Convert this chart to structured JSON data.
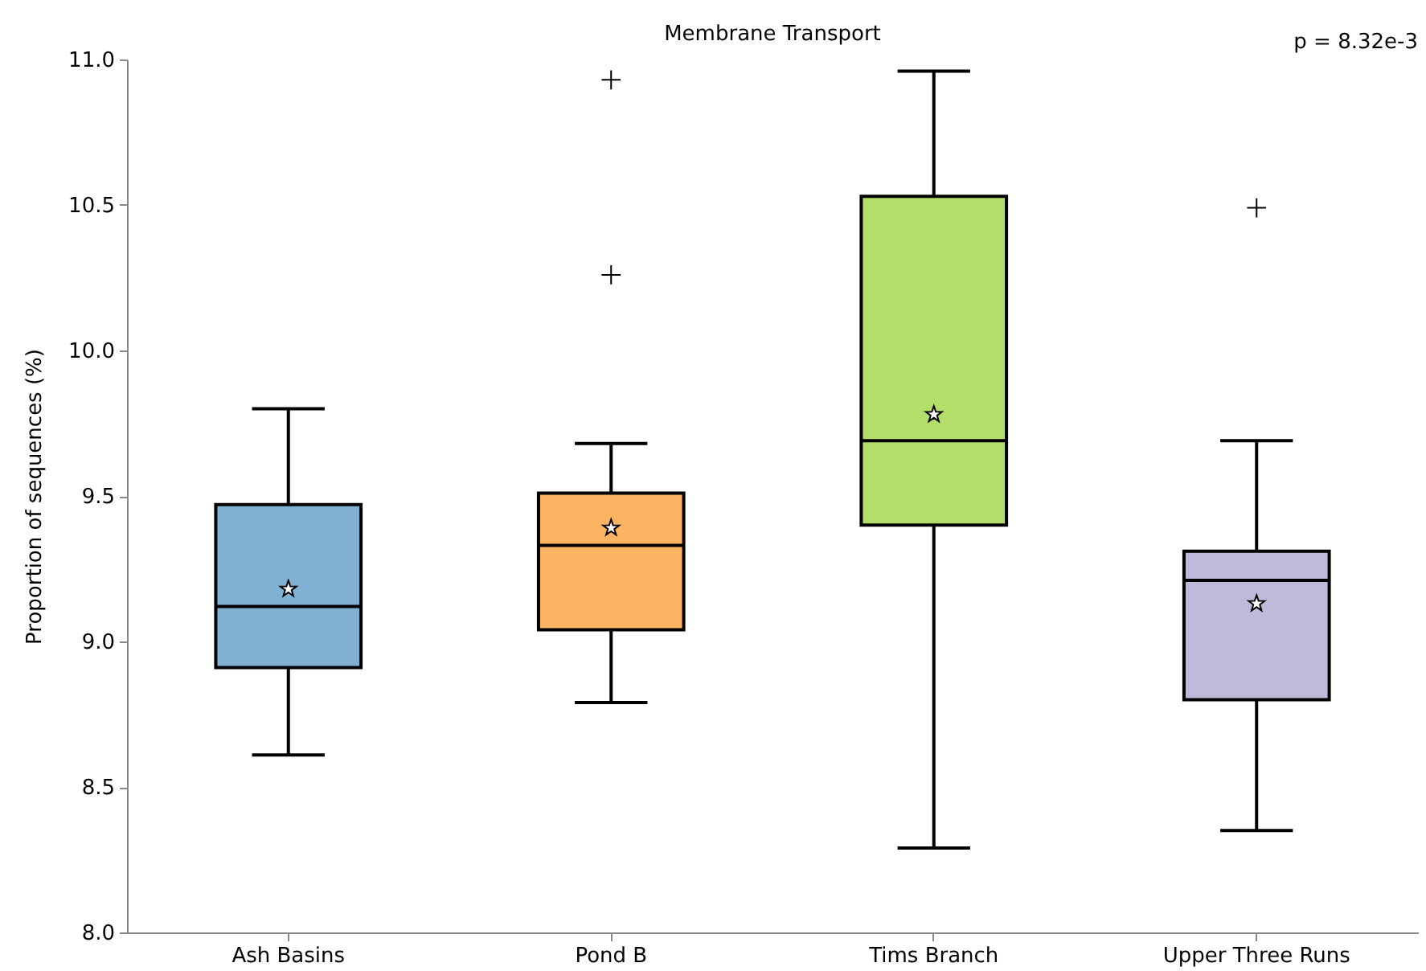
{
  "chart_data": {
    "type": "box",
    "title": "Membrane Transport",
    "ylabel": "Proportion of sequences (%)",
    "annotations": [
      "p = 8.32e-3"
    ],
    "categories": [
      "Ash Basins",
      "Pond B",
      "Tims Branch",
      "Upper Three Runs"
    ],
    "colors": [
      "#80b1d3",
      "#fdb462",
      "#b3de69",
      "#bebada"
    ],
    "boxes": [
      {
        "low": 8.61,
        "q1": 8.91,
        "median": 9.12,
        "q3": 9.47,
        "high": 9.8,
        "mean": 9.18
      },
      {
        "low": 8.79,
        "q1": 9.04,
        "median": 9.33,
        "q3": 9.51,
        "high": 9.68,
        "mean": 9.39,
        "outliers": [
          10.26,
          10.93
        ]
      },
      {
        "low": 8.29,
        "q1": 9.4,
        "median": 9.69,
        "q3": 10.53,
        "high": 10.96,
        "mean": 9.78
      },
      {
        "low": 8.35,
        "q1": 8.8,
        "median": 9.21,
        "q3": 9.31,
        "high": 9.69,
        "mean": 9.13,
        "outliers": [
          10.49
        ]
      }
    ],
    "ylim": [
      8,
      11
    ],
    "yticks": [
      {
        "value": 8,
        "label": "8.0"
      },
      8.5,
      {
        "value": 9,
        "label": "9.0"
      },
      9.5,
      {
        "value": 10,
        "label": "10.0"
      },
      10.5,
      {
        "value": 11,
        "label": "11.0"
      }
    ],
    "grid": false
  }
}
